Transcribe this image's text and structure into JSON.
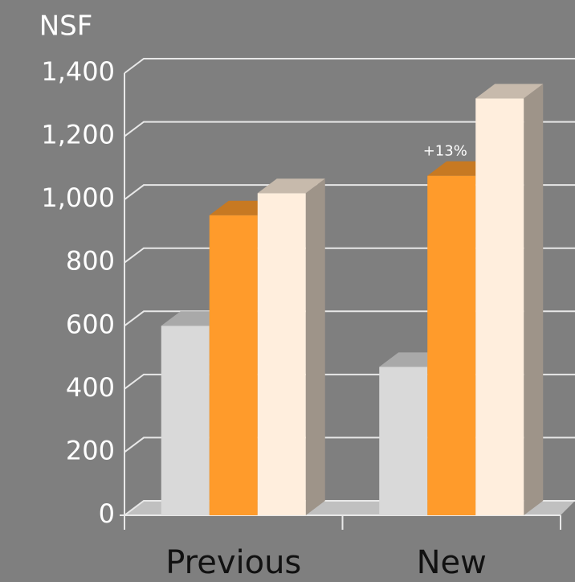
{
  "chart_data": {
    "type": "bar3d",
    "ylabel": "NSF",
    "categories": [
      "Previous",
      "New"
    ],
    "series": [
      {
        "color": "#d9d9d9",
        "values": [
          600,
          470
        ]
      },
      {
        "color": "#ff9b2b",
        "values": [
          950,
          1075
        ]
      },
      {
        "color": "#ffeedd",
        "values": [
          1020,
          1320
        ]
      }
    ],
    "annotations": [
      "+13%"
    ],
    "ylim": [
      0,
      1400
    ],
    "yticks": [
      0,
      200,
      400,
      600,
      800,
      {
        "value": 1000,
        "label": "1,000"
      },
      {
        "value": 1200,
        "label": "1,200"
      },
      {
        "value": 1400,
        "label": "1,400"
      }
    ],
    "grid": true
  }
}
